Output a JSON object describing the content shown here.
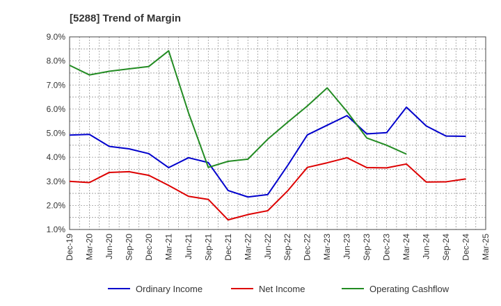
{
  "chart_data": {
    "type": "line",
    "title": "[5288]  Trend of Margin",
    "categories": [
      "Dec-19",
      "Mar-20",
      "Jun-20",
      "Sep-20",
      "Dec-20",
      "Mar-21",
      "Jun-21",
      "Sep-21",
      "Dec-21",
      "Mar-22",
      "Jun-22",
      "Sep-22",
      "Dec-22",
      "Mar-23",
      "Jun-23",
      "Sep-23",
      "Dec-23",
      "Mar-24",
      "Jun-24",
      "Sep-24",
      "Dec-24",
      "Mar-25"
    ],
    "y_ticks": [
      "1.0%",
      "2.0%",
      "3.0%",
      "4.0%",
      "5.0%",
      "6.0%",
      "7.0%",
      "8.0%",
      "9.0%"
    ],
    "ylim": [
      1.0,
      9.0
    ],
    "grid": true,
    "legend_position": "bottom",
    "series": [
      {
        "name": "Ordinary Income",
        "color": "#0000cc",
        "values": [
          4.92,
          4.95,
          4.45,
          4.35,
          4.15,
          3.57,
          3.98,
          3.78,
          2.62,
          2.35,
          2.45,
          3.65,
          4.93,
          5.33,
          5.73,
          4.97,
          5.02,
          6.08,
          5.3,
          4.88,
          4.87,
          null
        ]
      },
      {
        "name": "Net Income",
        "color": "#dd0000",
        "values": [
          3.0,
          2.95,
          3.37,
          3.4,
          3.25,
          2.83,
          2.38,
          2.25,
          1.4,
          1.62,
          1.78,
          2.6,
          3.58,
          3.77,
          3.98,
          3.57,
          3.56,
          3.72,
          2.97,
          2.98,
          3.1,
          null
        ]
      },
      {
        "name": "Operating Cashflow",
        "color": "#228b22",
        "values": [
          7.82,
          7.42,
          7.57,
          7.67,
          7.77,
          8.42,
          5.85,
          3.58,
          3.83,
          3.92,
          4.75,
          5.45,
          6.13,
          6.88,
          5.9,
          4.8,
          4.5,
          4.13,
          null,
          null,
          null,
          null
        ]
      }
    ]
  }
}
